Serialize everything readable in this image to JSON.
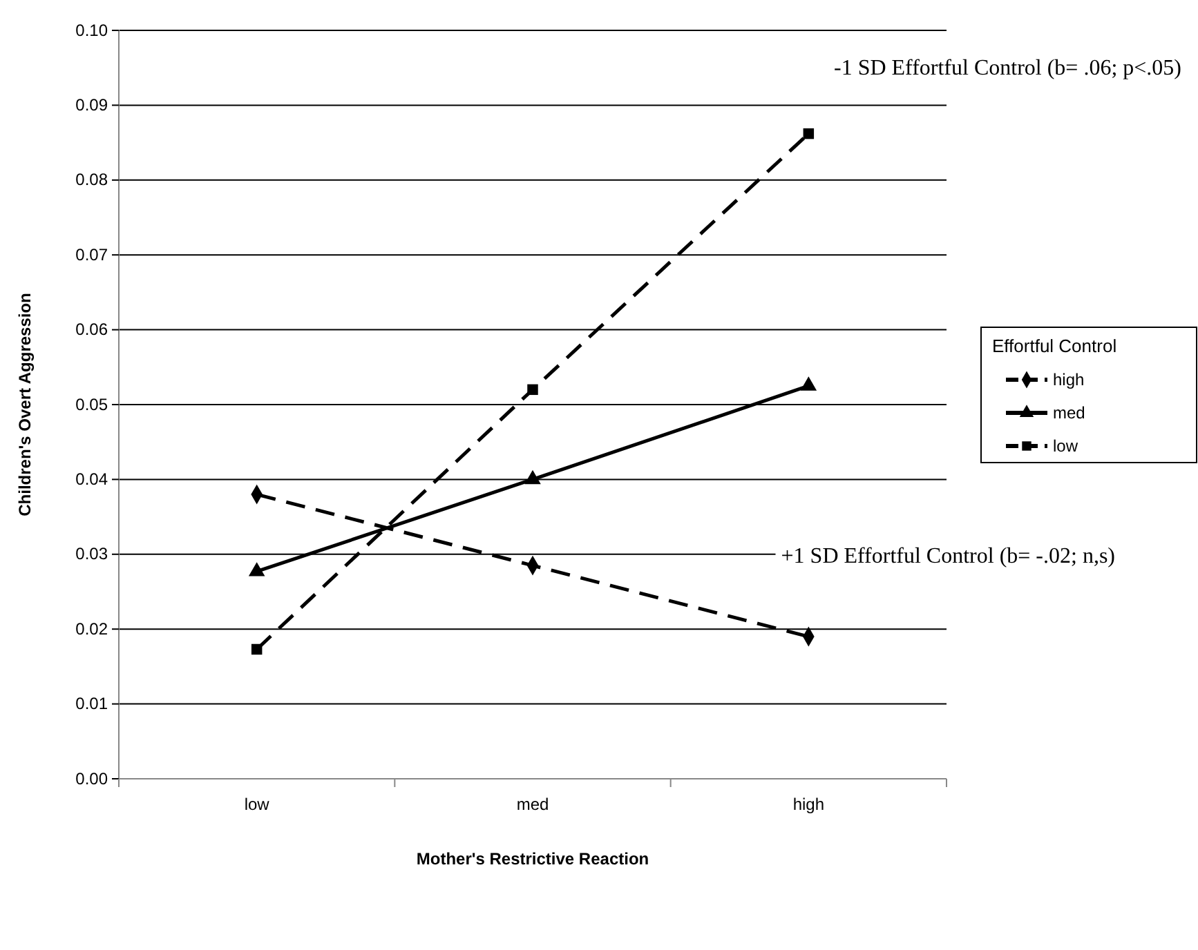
{
  "chart_data": {
    "type": "line",
    "xlabel": "Mother's Restrictive Reaction",
    "ylabel": "Children's Overt Aggression",
    "legend_title": "Effortful Control",
    "categories": [
      "low",
      "med",
      "high"
    ],
    "series": [
      {
        "name": "high",
        "color": "#000000",
        "values": [
          0.038,
          0.0285,
          0.019
        ],
        "marker": "diamond",
        "line_style": "dashed"
      },
      {
        "name": "med",
        "color": "#000000",
        "values": [
          0.0277,
          0.04,
          0.0525
        ],
        "marker": "triangle",
        "line_style": "solid"
      },
      {
        "name": "low",
        "color": "#000000",
        "values": [
          0.0173,
          0.052,
          0.0862
        ],
        "marker": "square",
        "line_style": "dashed"
      }
    ],
    "ylim": [
      0,
      0.1
    ],
    "yticks": [
      {
        "value": 0,
        "label": "0.00"
      },
      {
        "value": 0.01,
        "label": "0.01"
      },
      {
        "value": 0.02,
        "label": "0.02"
      },
      {
        "value": 0.03,
        "label": "0.03"
      },
      {
        "value": 0.04,
        "label": "0.04"
      },
      {
        "value": 0.05,
        "label": "0.05"
      },
      {
        "value": 0.06,
        "label": "0.06"
      },
      {
        "value": 0.07,
        "label": "0.07"
      },
      {
        "value": 0.08,
        "label": "0.08"
      },
      {
        "value": 0.09,
        "label": "0.09"
      },
      {
        "value": 0.1,
        "label": "0.10"
      }
    ],
    "grid": "y",
    "legend": "right",
    "annotations": [
      "-1 SD Effortful Control (b= .06; p<.05)",
      "+1 SD Effortful Control (b= -.02; n,s)"
    ]
  }
}
